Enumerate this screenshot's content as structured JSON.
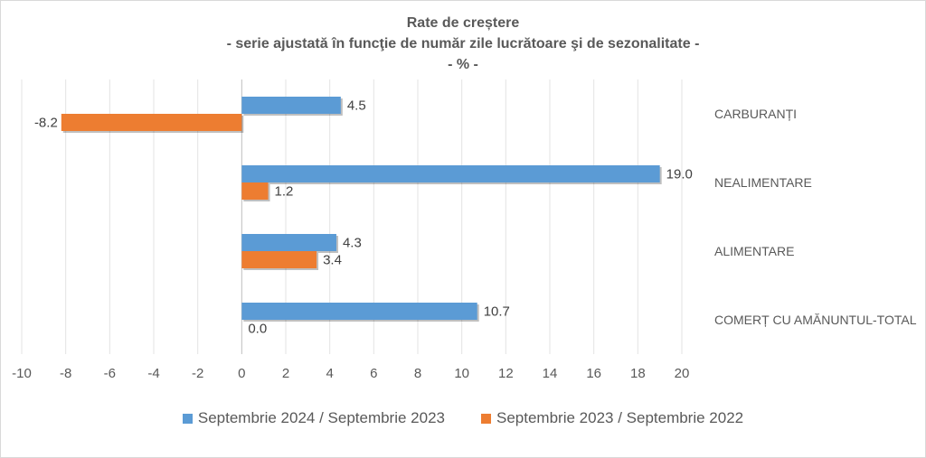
{
  "chart_data": {
    "type": "bar",
    "orientation": "horizontal",
    "title": "Rate de creștere",
    "subtitle": "- serie ajustată în funcţie de număr zile lucrătoare şi de sezonalitate -",
    "unit_line": "- % -",
    "categories": [
      "CARBURANȚI",
      "NEALIMENTARE",
      "ALIMENTARE",
      "COMERȚ CU AMĂNUNTUL-TOTAL"
    ],
    "series": [
      {
        "name": "Septembrie 2024 / Septembrie 2023",
        "color": "#5b9bd5",
        "values": [
          4.5,
          19.0,
          4.3,
          10.7
        ],
        "labels": [
          "4.5",
          "19.0",
          "4.3",
          "10.7"
        ]
      },
      {
        "name": "Septembrie 2023 / Septembrie 2022",
        "color": "#ed7d31",
        "values": [
          -8.2,
          1.2,
          3.4,
          0.0
        ],
        "labels": [
          "-8.2",
          "1.2",
          "3.4",
          "0.0"
        ]
      }
    ],
    "xlim": [
      -10,
      20
    ],
    "xticks": [
      "-10",
      "-8",
      "-6",
      "-4",
      "-2",
      "0",
      "2",
      "4",
      "6",
      "8",
      "10",
      "12",
      "14",
      "16",
      "18",
      "20"
    ],
    "grid": true,
    "legend_position": "bottom"
  }
}
